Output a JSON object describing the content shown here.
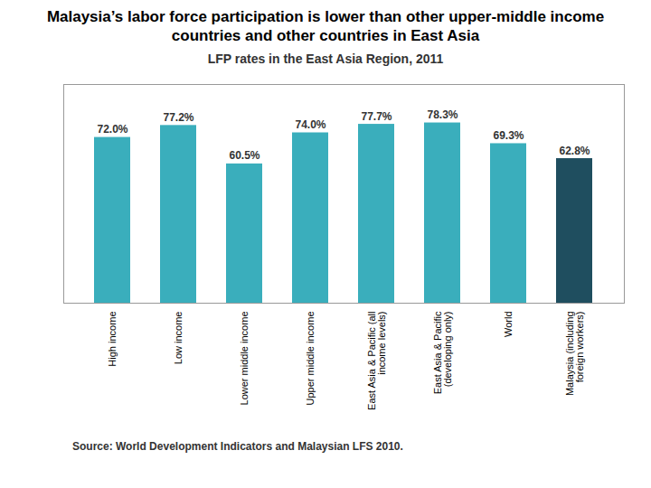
{
  "chart_data": {
    "type": "bar",
    "title": "Malaysia’s labor force participation is lower than other upper-middle income\ncountries and other countries in East Asia",
    "subtitle": "LFP rates in the East Asia Region,  2011",
    "caption": "Source: World Development Indicators and Malaysian LFS 2010.",
    "categories": [
      "High income",
      "Low income",
      "Lower middle income",
      "Upper middle income",
      "East Asia & Pacific (all\nincome levels)",
      "East Asia & Pacific\n(developing only)",
      "World",
      "Malaysia (including\nforeign workers)"
    ],
    "values": [
      72.0,
      77.2,
      60.5,
      74.0,
      77.7,
      78.3,
      69.3,
      62.8
    ],
    "value_labels": [
      "72.0%",
      "77.2%",
      "60.5%",
      "74.0%",
      "77.7%",
      "78.3%",
      "69.3%",
      "62.8%"
    ],
    "colors": [
      "#3aaebc",
      "#3aaebc",
      "#3aaebc",
      "#3aaebc",
      "#3aaebc",
      "#3aaebc",
      "#3aaebc",
      "#1f4e5f"
    ],
    "ylim": [
      0,
      95
    ],
    "data_labels": true,
    "tick_labels": "x",
    "grid": false
  }
}
